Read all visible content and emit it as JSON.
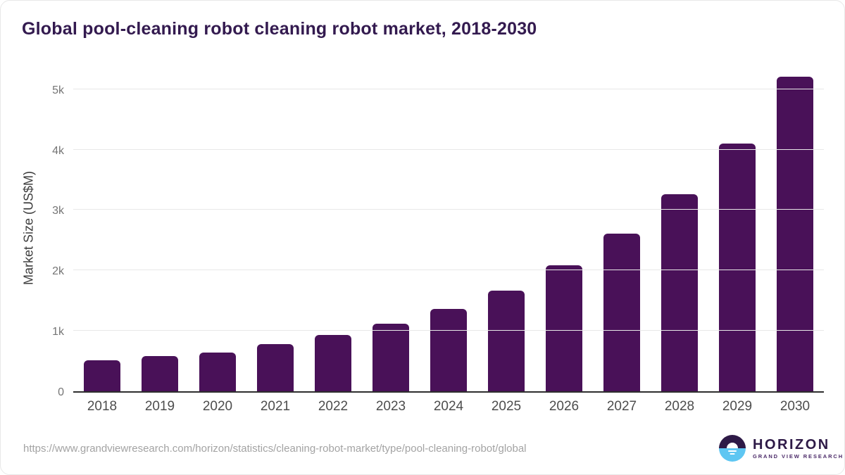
{
  "title": "Global pool-cleaning robot cleaning robot market, 2018-2030",
  "chart_data": {
    "type": "bar",
    "title": "Global pool-cleaning robot cleaning robot market, 2018-2030",
    "categories": [
      "2018",
      "2019",
      "2020",
      "2021",
      "2022",
      "2023",
      "2024",
      "2025",
      "2026",
      "2027",
      "2028",
      "2029",
      "2030"
    ],
    "values": [
      510,
      580,
      640,
      780,
      930,
      1120,
      1360,
      1670,
      2080,
      2610,
      3260,
      4100,
      5210
    ],
    "xlabel": "",
    "ylabel": "Market Size (US$M)",
    "ylim": [
      0,
      5440
    ],
    "yticks": [
      {
        "value": 0,
        "label": "0"
      },
      {
        "value": 1000,
        "label": "1k"
      },
      {
        "value": 2000,
        "label": "2k"
      },
      {
        "value": 3000,
        "label": "3k"
      },
      {
        "value": 4000,
        "label": "4k"
      },
      {
        "value": 5000,
        "label": "5k"
      }
    ],
    "grid": "horizontal",
    "legend": "none",
    "bar_color": "#491158"
  },
  "footer": {
    "source_url": "https://www.grandviewresearch.com/horizon/statistics/cleaning-robot-market/type/pool-cleaning-robot/global",
    "logo": {
      "name": "HORIZON",
      "subtitle": "GRAND VIEW RESEARCH"
    }
  },
  "colors": {
    "bar": "#491158",
    "title_text": "#331a4f",
    "axis_line": "#2e2e2e",
    "gridline": "#e8e8e8",
    "tick_text": "#757575",
    "x_label_text": "#4d4d4d",
    "url_text": "#a3a3a3",
    "logo_purple": "#2e1a47",
    "logo_blue": "#5ec6f2"
  }
}
